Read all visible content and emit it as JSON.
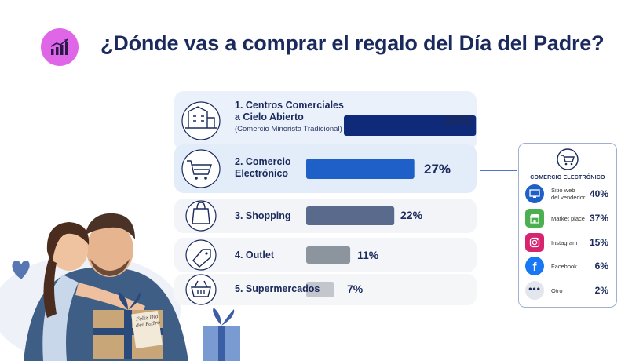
{
  "header": {
    "title": "¿Dónde vas a comprar el regalo del Día del Padre?",
    "icon": "trending-chart-icon"
  },
  "chart_data": {
    "type": "bar",
    "orientation": "horizontal",
    "categories": [
      "1. Centros Comerciales a Cielo Abierto",
      "2. Comercio Electrónico",
      "3. Shopping",
      "4. Outlet",
      "5. Supermercados"
    ],
    "values": [
      33,
      27,
      22,
      11,
      7
    ],
    "value_labels": [
      "33%",
      "27%",
      "22%",
      "11%",
      "7%"
    ],
    "subtitles": [
      "(Comercio Minorista Tradicional)",
      "",
      "",
      "",
      ""
    ],
    "bar_colors": [
      "#0f2a78",
      "#1f5fc8",
      "#5a6a8c",
      "#8c949e",
      "#c3c6cc"
    ],
    "icons": [
      "building-icon",
      "shopping-cart-icon",
      "shopping-bag-icon",
      "price-tag-icon",
      "basket-icon"
    ]
  },
  "rows": [
    {
      "line1": "1. Centros Comerciales",
      "line2": "a Cielo Abierto",
      "sub": "(Comercio Minorista Tradicional)",
      "pct": "33%"
    },
    {
      "line1": "2. Comercio",
      "line2": "Electrónico",
      "sub": "",
      "pct": "27%"
    },
    {
      "line1": "3. Shopping",
      "line2": "",
      "sub": "",
      "pct": "22%"
    },
    {
      "line1": "4. Outlet",
      "line2": "",
      "sub": "",
      "pct": "11%"
    },
    {
      "line1": "5. Supermercados",
      "line2": "",
      "sub": "",
      "pct": "7%"
    }
  ],
  "ecommerce": {
    "title": "COMERCIO ELECTRÓNICO",
    "items": [
      {
        "line1": "Sitio web",
        "line2": "del vendedor",
        "pct": "40%",
        "value": 40,
        "icon": "monitor-icon",
        "color": "#1f5fc8"
      },
      {
        "line1": "Market place",
        "line2": "",
        "pct": "37%",
        "value": 37,
        "icon": "storefront-icon",
        "color": "#4caf50"
      },
      {
        "line1": "Instagram",
        "line2": "",
        "pct": "15%",
        "value": 15,
        "icon": "instagram-icon",
        "color": "#d6246e"
      },
      {
        "line1": "Facebook",
        "line2": "",
        "pct": "6%",
        "value": 6,
        "icon": "facebook-icon",
        "color": "#1877f2"
      },
      {
        "line1": "Otro",
        "line2": "",
        "pct": "2%",
        "value": 2,
        "icon": "more-dots-icon",
        "color": "#e3e6ec"
      }
    ]
  },
  "illustration": {
    "gift_tag_text": "Feliz Día del Padre"
  }
}
